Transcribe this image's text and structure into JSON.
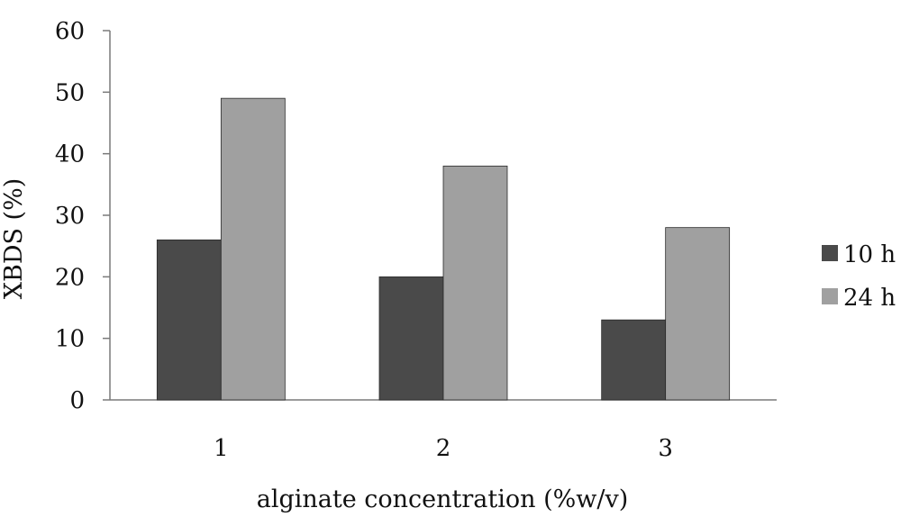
{
  "chart_data": {
    "type": "bar",
    "title": "",
    "xlabel": "alginate concentration (%w/v)",
    "ylabel": "XBDS (%)",
    "categories": [
      "1",
      "2",
      "3"
    ],
    "ylim": [
      0,
      60
    ],
    "yticks": [
      0,
      10,
      20,
      30,
      40,
      50,
      60
    ],
    "grid": false,
    "legend_position": "right",
    "series": [
      {
        "name": "10 h",
        "color": "#4a4a4a",
        "values": [
          26,
          20,
          13
        ]
      },
      {
        "name": "24 h",
        "color": "#a0a0a0",
        "values": [
          49,
          38,
          28
        ]
      }
    ]
  }
}
